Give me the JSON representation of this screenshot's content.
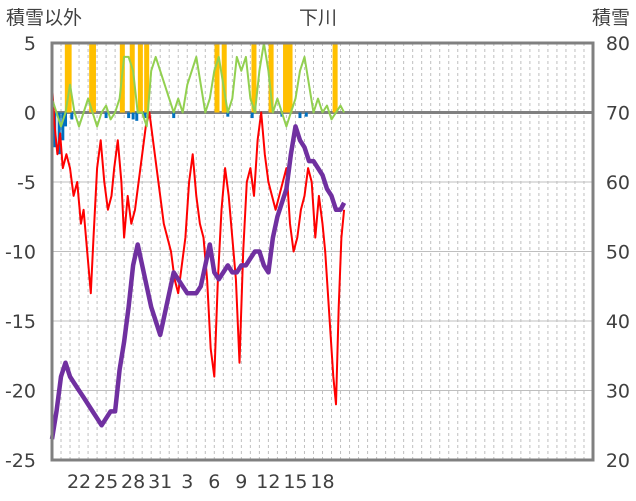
{
  "chart_data": {
    "type": "line",
    "title": "下川",
    "left_axis_title": "積雪以外",
    "right_axis_title": "積雪",
    "y_left": {
      "min": -25,
      "max": 5,
      "ticks": [
        5,
        0,
        -5,
        -10,
        -15,
        -20,
        -25
      ]
    },
    "y_right": {
      "min": 20,
      "max": 80,
      "ticks": [
        80,
        70,
        60,
        50,
        40,
        30,
        20
      ]
    },
    "x_range": [
      0,
      60
    ],
    "x_ticks": [
      {
        "label": "22",
        "x": 3
      },
      {
        "label": "25",
        "x": 6
      },
      {
        "label": "28",
        "x": 9
      },
      {
        "label": "31",
        "x": 12
      },
      {
        "label": "3",
        "x": 15
      },
      {
        "label": "6",
        "x": 18
      },
      {
        "label": "9",
        "x": 21
      },
      {
        "label": "12",
        "x": 24
      },
      {
        "label": "15",
        "x": 27
      },
      {
        "label": "18",
        "x": 30
      }
    ],
    "grid": "vertical dashed every day, solid horizontal lines",
    "colors": {
      "temperature": "#ff0000",
      "snow_depth": "#7030a0",
      "sunshine": "#ffc000",
      "wind": "#92d050",
      "precip": "#0070c0",
      "grid": "#bfbfbf",
      "zero_line": "#808080",
      "frame": "#808080"
    },
    "series": [
      {
        "key": "temperature",
        "axis": "left",
        "points": [
          [
            0,
            2
          ],
          [
            0.3,
            -1
          ],
          [
            0.6,
            -3
          ],
          [
            0.9,
            -1.5
          ],
          [
            1.2,
            -4
          ],
          [
            1.6,
            -3
          ],
          [
            2,
            -4
          ],
          [
            2.4,
            -6
          ],
          [
            2.8,
            -5
          ],
          [
            3.2,
            -8
          ],
          [
            3.5,
            -7
          ],
          [
            3.9,
            -10
          ],
          [
            4.3,
            -13
          ],
          [
            4.6,
            -9
          ],
          [
            5,
            -4
          ],
          [
            5.4,
            -2
          ],
          [
            5.8,
            -5
          ],
          [
            6.2,
            -7
          ],
          [
            6.6,
            -6
          ],
          [
            6.9,
            -4
          ],
          [
            7.3,
            -2
          ],
          [
            7.7,
            -5
          ],
          [
            8,
            -9
          ],
          [
            8.4,
            -6
          ],
          [
            8.8,
            -8
          ],
          [
            9.2,
            -7
          ],
          [
            9.6,
            -5
          ],
          [
            10,
            -3
          ],
          [
            10.4,
            -1
          ],
          [
            10.8,
            0
          ],
          [
            11.2,
            -2
          ],
          [
            11.6,
            -4
          ],
          [
            12,
            -6
          ],
          [
            12.4,
            -8
          ],
          [
            12.8,
            -9
          ],
          [
            13.2,
            -10
          ],
          [
            13.6,
            -12
          ],
          [
            14,
            -13
          ],
          [
            14.4,
            -11
          ],
          [
            14.8,
            -9
          ],
          [
            15.2,
            -5
          ],
          [
            15.6,
            -3
          ],
          [
            16,
            -6
          ],
          [
            16.4,
            -8
          ],
          [
            16.8,
            -9
          ],
          [
            17.2,
            -12
          ],
          [
            17.6,
            -17
          ],
          [
            18,
            -19
          ],
          [
            18.4,
            -12
          ],
          [
            18.8,
            -7
          ],
          [
            19.2,
            -4
          ],
          [
            19.6,
            -6
          ],
          [
            20,
            -9
          ],
          [
            20.4,
            -12
          ],
          [
            20.8,
            -18
          ],
          [
            21.2,
            -10
          ],
          [
            21.6,
            -5
          ],
          [
            22,
            -4
          ],
          [
            22.4,
            -6
          ],
          [
            22.8,
            -2
          ],
          [
            23.2,
            0
          ],
          [
            23.6,
            -3
          ],
          [
            24,
            -5
          ],
          [
            24.4,
            -6
          ],
          [
            24.8,
            -7
          ],
          [
            25.2,
            -6
          ],
          [
            25.6,
            -5
          ],
          [
            26,
            -4
          ],
          [
            26.4,
            -8
          ],
          [
            26.8,
            -10
          ],
          [
            27.2,
            -9
          ],
          [
            27.6,
            -7
          ],
          [
            28,
            -6
          ],
          [
            28.4,
            -4
          ],
          [
            28.8,
            -5
          ],
          [
            29.2,
            -9
          ],
          [
            29.6,
            -6
          ],
          [
            30,
            -8
          ],
          [
            30.3,
            -10
          ],
          [
            30.6,
            -13
          ],
          [
            30.9,
            -16
          ],
          [
            31.2,
            -19
          ],
          [
            31.5,
            -21
          ],
          [
            31.8,
            -14
          ],
          [
            32.1,
            -9
          ],
          [
            32.4,
            -7
          ]
        ]
      },
      {
        "key": "snow_depth",
        "axis": "right",
        "points": [
          [
            0,
            23
          ],
          [
            0.5,
            27
          ],
          [
            1,
            32
          ],
          [
            1.5,
            34
          ],
          [
            2,
            32
          ],
          [
            2.5,
            31
          ],
          [
            3,
            30
          ],
          [
            3.5,
            29
          ],
          [
            4,
            28
          ],
          [
            4.5,
            27
          ],
          [
            5,
            26
          ],
          [
            5.5,
            25
          ],
          [
            6,
            26
          ],
          [
            6.5,
            27
          ],
          [
            7,
            27
          ],
          [
            7.5,
            33
          ],
          [
            8,
            37
          ],
          [
            8.5,
            42
          ],
          [
            9,
            48
          ],
          [
            9.5,
            51
          ],
          [
            10,
            48
          ],
          [
            10.5,
            45
          ],
          [
            11,
            42
          ],
          [
            11.5,
            40
          ],
          [
            12,
            38
          ],
          [
            12.5,
            41
          ],
          [
            13,
            44
          ],
          [
            13.5,
            47
          ],
          [
            14,
            46
          ],
          [
            14.5,
            45
          ],
          [
            15,
            44
          ],
          [
            15.5,
            44
          ],
          [
            16,
            44
          ],
          [
            16.5,
            45
          ],
          [
            17,
            48
          ],
          [
            17.5,
            51
          ],
          [
            18,
            47
          ],
          [
            18.5,
            46
          ],
          [
            19,
            47
          ],
          [
            19.5,
            48
          ],
          [
            20,
            47
          ],
          [
            20.5,
            47
          ],
          [
            21,
            48
          ],
          [
            21.5,
            48
          ],
          [
            22,
            49
          ],
          [
            22.5,
            50
          ],
          [
            23,
            50
          ],
          [
            23.5,
            48
          ],
          [
            24,
            47
          ],
          [
            24.5,
            52
          ],
          [
            25,
            55
          ],
          [
            25.5,
            57
          ],
          [
            26,
            59
          ],
          [
            26.5,
            64
          ],
          [
            27,
            68
          ],
          [
            27.5,
            66
          ],
          [
            28,
            65
          ],
          [
            28.5,
            63
          ],
          [
            29,
            63
          ],
          [
            29.5,
            62
          ],
          [
            30,
            61
          ],
          [
            30.5,
            59
          ],
          [
            31,
            58
          ],
          [
            31.5,
            56
          ],
          [
            32,
            56
          ],
          [
            32.4,
            57
          ]
        ]
      },
      {
        "key": "wind",
        "axis": "left",
        "points": [
          [
            0,
            1
          ],
          [
            0.5,
            0
          ],
          [
            1,
            -1
          ],
          [
            1.5,
            0
          ],
          [
            2,
            2
          ],
          [
            2.5,
            0
          ],
          [
            3,
            -1
          ],
          [
            3.5,
            0
          ],
          [
            4,
            1
          ],
          [
            4.5,
            0
          ],
          [
            5,
            -1
          ],
          [
            5.5,
            0
          ],
          [
            6,
            0.5
          ],
          [
            6.5,
            -0.5
          ],
          [
            7,
            0
          ],
          [
            7.5,
            1
          ],
          [
            8,
            4
          ],
          [
            8.5,
            4
          ],
          [
            9,
            3
          ],
          [
            9.5,
            0
          ],
          [
            10,
            0
          ],
          [
            10.5,
            -1
          ],
          [
            11,
            3
          ],
          [
            11.5,
            4
          ],
          [
            12,
            3
          ],
          [
            12.5,
            2
          ],
          [
            13,
            1
          ],
          [
            13.5,
            0
          ],
          [
            14,
            1
          ],
          [
            14.5,
            0
          ],
          [
            15,
            2
          ],
          [
            15.5,
            3
          ],
          [
            16,
            4
          ],
          [
            16.5,
            2
          ],
          [
            17,
            0
          ],
          [
            17.5,
            1
          ],
          [
            18,
            3
          ],
          [
            18.5,
            4
          ],
          [
            19,
            2
          ],
          [
            19.5,
            0
          ],
          [
            20,
            1
          ],
          [
            20.5,
            4
          ],
          [
            21,
            3
          ],
          [
            21.5,
            4
          ],
          [
            22,
            1
          ],
          [
            22.5,
            0
          ],
          [
            23,
            3
          ],
          [
            23.5,
            5
          ],
          [
            24,
            3
          ],
          [
            24.5,
            0
          ],
          [
            25,
            1
          ],
          [
            25.5,
            0
          ],
          [
            26,
            -1
          ],
          [
            26.5,
            0
          ],
          [
            27,
            1
          ],
          [
            27.5,
            3
          ],
          [
            28,
            4
          ],
          [
            28.5,
            2
          ],
          [
            29,
            0
          ],
          [
            29.5,
            1
          ],
          [
            30,
            0
          ],
          [
            30.5,
            0.5
          ],
          [
            31,
            -0.5
          ],
          [
            31.5,
            0
          ],
          [
            32,
            0.5
          ],
          [
            32.4,
            0
          ]
        ]
      }
    ],
    "sunshine_bars": [
      1.7,
      1.9,
      4.4,
      4.6,
      7.8,
      8.9,
      9.8,
      10.5,
      18.3,
      19.1,
      22.4,
      24.3,
      25.9,
      26.4,
      31.4
    ],
    "sunshine_bar_height": 5,
    "precip_bars": [
      {
        "x": 0.3,
        "v": -2.5
      },
      {
        "x": 0.8,
        "v": -3
      },
      {
        "x": 1.2,
        "v": -2
      },
      {
        "x": 1.5,
        "v": -1
      },
      {
        "x": 2.2,
        "v": -0.5
      },
      {
        "x": 6.0,
        "v": -0.4
      },
      {
        "x": 8.5,
        "v": -0.4
      },
      {
        "x": 9.0,
        "v": -0.5
      },
      {
        "x": 9.4,
        "v": -0.6
      },
      {
        "x": 10.3,
        "v": -0.4
      },
      {
        "x": 13.5,
        "v": -0.4
      },
      {
        "x": 19.5,
        "v": -0.3
      },
      {
        "x": 22.2,
        "v": -0.4
      },
      {
        "x": 25.5,
        "v": -0.3
      },
      {
        "x": 27.5,
        "v": -0.4
      },
      {
        "x": 28.2,
        "v": -0.3
      }
    ]
  }
}
